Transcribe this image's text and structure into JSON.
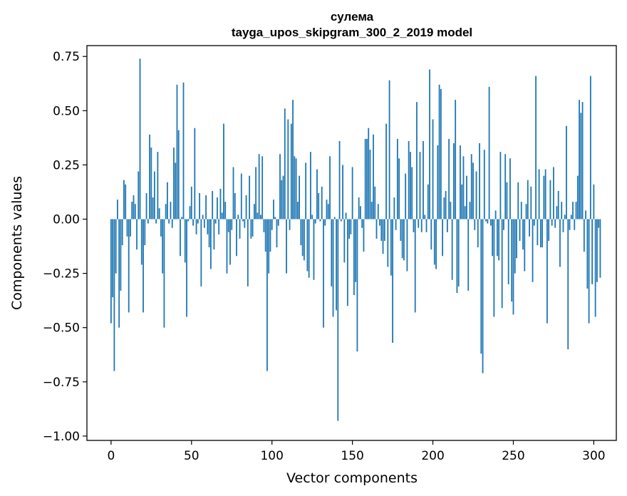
{
  "chart_data": {
    "type": "bar",
    "title": "сулема",
    "subtitle": "tayga_upos_skipgram_300_2_2019 model",
    "xlabel": "Vector components",
    "ylabel": "Components values",
    "xlim": [
      -15,
      314
    ],
    "ylim": [
      -1.02,
      0.8
    ],
    "x_ticks": [
      0,
      50,
      100,
      150,
      200,
      250,
      300
    ],
    "x_tick_labels": [
      "0",
      "50",
      "100",
      "150",
      "200",
      "250",
      "300"
    ],
    "y_ticks": [
      0.75,
      0.5,
      0.25,
      0.0,
      -0.25,
      -0.5,
      -0.75,
      -1.0
    ],
    "y_tick_labels": [
      "0.75",
      "0.50",
      "0.25",
      "0.00",
      "−0.25",
      "−0.50",
      "−0.75",
      "−1.00"
    ],
    "bar_color": "#1f77b4",
    "grid": false,
    "values": [
      -0.48,
      -0.36,
      -0.7,
      -0.25,
      0.09,
      -0.5,
      -0.33,
      -0.12,
      0.18,
      0.16,
      -0.08,
      -0.43,
      -0.08,
      0.08,
      0.11,
      0.07,
      -0.14,
      0.22,
      0.74,
      -0.21,
      -0.43,
      -0.12,
      0.12,
      -0.02,
      0.39,
      0.33,
      0.1,
      0.22,
      -0.02,
      0.31,
      0.05,
      -0.08,
      -0.25,
      -0.5,
      0.07,
      0.17,
      -0.02,
      0.08,
      -0.04,
      0.33,
      0.26,
      0.62,
      0.41,
      -0.17,
      0.01,
      0.63,
      -0.2,
      -0.45,
      -0.01,
      0.06,
      0.15,
      -0.03,
      0.42,
      -0.07,
      -0.02,
      0.12,
      -0.31,
      0.02,
      -0.04,
      0.11,
      -0.07,
      -0.13,
      -0.23,
      0.13,
      -0.14,
      -0.02,
      0.1,
      -0.07,
      0.14,
      0.03,
      0.44,
      0.08,
      -0.25,
      -0.06,
      -0.21,
      -0.05,
      0.24,
      0.12,
      -0.17,
      0.02,
      -0.09,
      0.21,
      -0.01,
      -0.04,
      0.11,
      -0.31,
      0.2,
      -0.09,
      -0.08,
      0.07,
      0.24,
      0.03,
      0.3,
      0.02,
      0.29,
      -0.06,
      -0.15,
      -0.7,
      -0.25,
      -0.15,
      -0.05,
      0.09,
      0.01,
      -0.13,
      -0.03,
      0.3,
      0.18,
      0.2,
      0.51,
      -0.25,
      0.46,
      -0.05,
      0.44,
      0.55,
      0.29,
      0.28,
      0.08,
      0.2,
      -0.12,
      -0.17,
      -0.19,
      0.26,
      -0.24,
      -0.27,
      0.31,
      0.02,
      -0.28,
      -0.02,
      0.23,
      0.12,
      -0.01,
      0.15,
      -0.5,
      -0.03,
      0.09,
      0.07,
      0.29,
      -0.31,
      -0.45,
      0.01,
      -0.42,
      -0.93,
      0.36,
      -0.01,
      0.25,
      -0.2,
      0.03,
      -0.4,
      -0.09,
      -0.07,
      0.24,
      -0.35,
      -0.29,
      -0.61,
      0.1,
      0.06,
      -0.04,
      -0.15,
      0.37,
      0.37,
      0.42,
      0.32,
      0.08,
      0.39,
      0.15,
      -0.09,
      0.07,
      -0.03,
      -0.1,
      -0.16,
      -0.1,
      0.44,
      -0.22,
      0.64,
      -0.26,
      -0.57,
      0.1,
      -0.05,
      0.37,
      0.28,
      -0.1,
      -0.18,
      -0.19,
      0.21,
      -0.24,
      0.36,
      0.31,
      0.24,
      -0.06,
      -0.43,
      0.54,
      -0.04,
      0.31,
      -0.06,
      0.36,
      0.02,
      -0.06,
      0.16,
      0.69,
      -0.14,
      0.46,
      -0.21,
      -0.23,
      0.34,
      0.62,
      0.6,
      -0.17,
      0.1,
      0.13,
      -0.06,
      0.37,
      0.08,
      -0.28,
      0.35,
      0.55,
      -0.34,
      -0.31,
      0.34,
      0.16,
      0.29,
      0.06,
      0.2,
      -0.33,
      0.08,
      0.3,
      0.26,
      -0.05,
      0.22,
      -0.13,
      0.35,
      -0.62,
      -0.71,
      0.32,
      -0.01,
      -0.02,
      0.61,
      -0.03,
      -0.17,
      -0.45,
      0.04,
      -0.17,
      -0.19,
      0.31,
      -0.41,
      -0.05,
      0.3,
      0.17,
      -0.3,
      0.28,
      -0.38,
      -0.44,
      -0.25,
      -0.18,
      0.17,
      -0.1,
      0.08,
      -0.14,
      -0.24,
      0.07,
      0.18,
      -0.08,
      0.15,
      -0.29,
      -0.03,
      0.66,
      -0.12,
      0.23,
      -0.13,
      -0.13,
      0.2,
      0.23,
      -0.48,
      -0.1,
      0.18,
      -0.03,
      0.24,
      -0.04,
      0.06,
      0.13,
      -0.22,
      0.08,
      -0.06,
      0.02,
      0.43,
      -0.6,
      -0.05,
      0.02,
      0.08,
      -0.05,
      0.08,
      0.2,
      0.55,
      0.49,
      0.54,
      -0.15,
      0.04,
      -0.32,
      -0.48,
      0.66,
      -0.3,
      0.16,
      -0.45,
      -0.29,
      -0.04,
      -0.27
    ]
  }
}
